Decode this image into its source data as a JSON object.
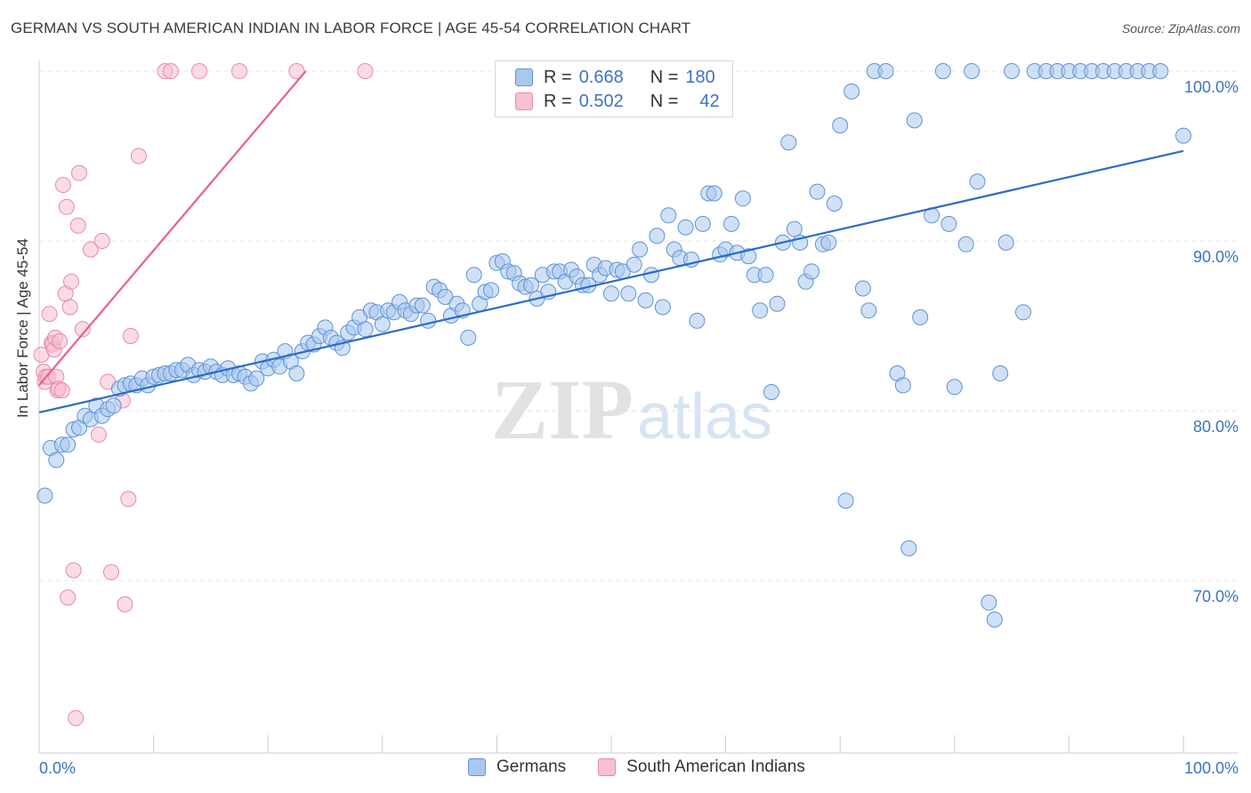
{
  "title": "GERMAN VS SOUTH AMERICAN INDIAN IN LABOR FORCE | AGE 45-54 CORRELATION CHART",
  "source": "Source: ZipAtlas.com",
  "watermark": {
    "zip": "ZIP",
    "atlas": "atlas"
  },
  "legend": {
    "r_label": "R =",
    "n_label": "N =",
    "series": [
      {
        "r": "0.668",
        "n": "180",
        "fill": "#aac8ee",
        "stroke": "#5e92d8"
      },
      {
        "r": "0.502",
        "n": "42",
        "fill": "#f8c0d2",
        "stroke": "#e58aa8"
      }
    ]
  },
  "colors": {
    "blue_line": "#2b6cc8",
    "pink_line": "#e8608d",
    "tick_label": "#3a74c4",
    "grid": "#e6e6e6"
  },
  "chart_data": {
    "type": "scatter",
    "title": "GERMAN VS SOUTH AMERICAN INDIAN IN LABOR FORCE | AGE 45-54 CORRELATION CHART",
    "xlabel": "",
    "ylabel": "In Labor Force | Age 45-54",
    "xlim": [
      0,
      100
    ],
    "ylim": [
      60,
      101
    ],
    "x_tick_labels": [
      "0.0%",
      "100.0%"
    ],
    "y_ticks": [
      70,
      80,
      90,
      100
    ],
    "y_tick_labels": [
      "70.0%",
      "80.0%",
      "90.0%",
      "100.0%"
    ],
    "grid": true,
    "legend_placement": "bottom",
    "series": [
      {
        "name": "Germans",
        "color": "#aac8ee",
        "trend": {
          "x": [
            0,
            100
          ],
          "y": [
            79.9,
            95.3
          ]
        },
        "points": [
          [
            0.5,
            75
          ],
          [
            1,
            77.8
          ],
          [
            1.5,
            77.1
          ],
          [
            2,
            78
          ],
          [
            2.5,
            78
          ],
          [
            3,
            78.9
          ],
          [
            3.5,
            79
          ],
          [
            4,
            79.7
          ],
          [
            4.5,
            79.5
          ],
          [
            5,
            80.3
          ],
          [
            5.5,
            79.7
          ],
          [
            6,
            80.1
          ],
          [
            6.5,
            80.3
          ],
          [
            7,
            81.3
          ],
          [
            7.5,
            81.5
          ],
          [
            8,
            81.6
          ],
          [
            8.5,
            81.5
          ],
          [
            9,
            81.9
          ],
          [
            9.5,
            81.5
          ],
          [
            10,
            82
          ],
          [
            10.5,
            82.1
          ],
          [
            11,
            82.2
          ],
          [
            11.5,
            82.2
          ],
          [
            12,
            82.4
          ],
          [
            12.5,
            82.4
          ],
          [
            13,
            82.7
          ],
          [
            13.5,
            82.1
          ],
          [
            14,
            82.4
          ],
          [
            14.5,
            82.3
          ],
          [
            15,
            82.6
          ],
          [
            15.5,
            82.3
          ],
          [
            16,
            82.1
          ],
          [
            16.5,
            82.5
          ],
          [
            17,
            82.1
          ],
          [
            17.5,
            82.2
          ],
          [
            18,
            82
          ],
          [
            18.5,
            81.6
          ],
          [
            19,
            81.9
          ],
          [
            19.5,
            82.9
          ],
          [
            20,
            82.5
          ],
          [
            20.5,
            83
          ],
          [
            21,
            82.6
          ],
          [
            21.5,
            83.5
          ],
          [
            22,
            82.9
          ],
          [
            22.5,
            82.2
          ],
          [
            23,
            83.5
          ],
          [
            23.5,
            84
          ],
          [
            24,
            83.9
          ],
          [
            24.5,
            84.4
          ],
          [
            25,
            84.9
          ],
          [
            25.5,
            84.3
          ],
          [
            26,
            84
          ],
          [
            26.5,
            83.7
          ],
          [
            27,
            84.6
          ],
          [
            27.5,
            84.9
          ],
          [
            28,
            85.5
          ],
          [
            28.5,
            84.8
          ],
          [
            29,
            85.9
          ],
          [
            29.5,
            85.8
          ],
          [
            30,
            85.1
          ],
          [
            30.5,
            85.9
          ],
          [
            31,
            85.8
          ],
          [
            31.5,
            86.4
          ],
          [
            32,
            85.9
          ],
          [
            32.5,
            85.7
          ],
          [
            33,
            86.2
          ],
          [
            33.5,
            86.2
          ],
          [
            34,
            85.3
          ],
          [
            34.5,
            87.3
          ],
          [
            35,
            87.1
          ],
          [
            35.5,
            86.7
          ],
          [
            36,
            85.6
          ],
          [
            36.5,
            86.3
          ],
          [
            37,
            85.9
          ],
          [
            37.5,
            84.3
          ],
          [
            38,
            88
          ],
          [
            38.5,
            86.3
          ],
          [
            39,
            87
          ],
          [
            39.5,
            87.1
          ],
          [
            40,
            88.7
          ],
          [
            40.5,
            88.8
          ],
          [
            41,
            88.2
          ],
          [
            41.5,
            88.1
          ],
          [
            42,
            87.5
          ],
          [
            42.5,
            87.3
          ],
          [
            43,
            87.4
          ],
          [
            43.5,
            86.6
          ],
          [
            44,
            88
          ],
          [
            44.5,
            87
          ],
          [
            45,
            88.2
          ],
          [
            45.5,
            88.2
          ],
          [
            46,
            87.6
          ],
          [
            46.5,
            88.3
          ],
          [
            47,
            87.9
          ],
          [
            47.5,
            87.4
          ],
          [
            48,
            87.4
          ],
          [
            48.5,
            88.6
          ],
          [
            49,
            88
          ],
          [
            49.5,
            88.4
          ],
          [
            50,
            86.9
          ],
          [
            50.5,
            88.3
          ],
          [
            51,
            88.2
          ],
          [
            51.5,
            86.9
          ],
          [
            52,
            88.6
          ],
          [
            52.5,
            89.5
          ],
          [
            53,
            86.5
          ],
          [
            53.5,
            88
          ],
          [
            54,
            90.3
          ],
          [
            54.5,
            86.1
          ],
          [
            55,
            91.5
          ],
          [
            55.5,
            89.5
          ],
          [
            56,
            89
          ],
          [
            56.5,
            90.8
          ],
          [
            57,
            88.9
          ],
          [
            57.5,
            85.3
          ],
          [
            58,
            91
          ],
          [
            58.5,
            92.8
          ],
          [
            59,
            92.8
          ],
          [
            59.5,
            89.2
          ],
          [
            60,
            89.5
          ],
          [
            60.5,
            91
          ],
          [
            61,
            89.3
          ],
          [
            61.5,
            92.5
          ],
          [
            62,
            89.1
          ],
          [
            62.5,
            88
          ],
          [
            63,
            85.9
          ],
          [
            63.5,
            88
          ],
          [
            64,
            81.1
          ],
          [
            64.5,
            86.3
          ],
          [
            65,
            89.9
          ],
          [
            65.5,
            95.8
          ],
          [
            66,
            90.7
          ],
          [
            66.5,
            89.9
          ],
          [
            67,
            87.6
          ],
          [
            67.5,
            88.2
          ],
          [
            68,
            92.9
          ],
          [
            68.5,
            89.8
          ],
          [
            69,
            89.9
          ],
          [
            69.5,
            92.2
          ],
          [
            70,
            96.8
          ],
          [
            70.5,
            74.7
          ],
          [
            71,
            98.8
          ],
          [
            72,
            87.2
          ],
          [
            72.5,
            85.9
          ],
          [
            73,
            100
          ],
          [
            74,
            100
          ],
          [
            75,
            82.2
          ],
          [
            75.5,
            81.5
          ],
          [
            76,
            71.9
          ],
          [
            76.5,
            97.1
          ],
          [
            77,
            85.5
          ],
          [
            78,
            91.5
          ],
          [
            79,
            100
          ],
          [
            79.5,
            91
          ],
          [
            80,
            81.4
          ],
          [
            81,
            89.8
          ],
          [
            81.5,
            100
          ],
          [
            82,
            93.5
          ],
          [
            83,
            68.7
          ],
          [
            83.5,
            67.7
          ],
          [
            84,
            82.2
          ],
          [
            84.5,
            89.9
          ],
          [
            85,
            100
          ],
          [
            86,
            85.8
          ],
          [
            87,
            100
          ],
          [
            88,
            100
          ],
          [
            89,
            100
          ],
          [
            90,
            100
          ],
          [
            91,
            100
          ],
          [
            92,
            100
          ],
          [
            93,
            100
          ],
          [
            94,
            100
          ],
          [
            95,
            100
          ],
          [
            96,
            100
          ],
          [
            97,
            100
          ],
          [
            98,
            100
          ],
          [
            100,
            96.2
          ]
        ]
      },
      {
        "name": "South American Indians",
        "color": "#f8c0d2",
        "trend": {
          "x": [
            0,
            23.3
          ],
          "y": [
            81.5,
            100
          ]
        },
        "points": [
          [
            0.2,
            83.3
          ],
          [
            0.4,
            82.3
          ],
          [
            0.5,
            81.7
          ],
          [
            0.6,
            82
          ],
          [
            0.8,
            82
          ],
          [
            0.9,
            85.7
          ],
          [
            1.1,
            84
          ],
          [
            1.2,
            83.9
          ],
          [
            1.3,
            83.6
          ],
          [
            1.4,
            84.3
          ],
          [
            1.5,
            82
          ],
          [
            1.6,
            81.2
          ],
          [
            1.7,
            81.3
          ],
          [
            1.8,
            84.1
          ],
          [
            2.0,
            81.2
          ],
          [
            2.1,
            93.3
          ],
          [
            2.3,
            86.9
          ],
          [
            2.4,
            92
          ],
          [
            2.5,
            69
          ],
          [
            2.7,
            86.1
          ],
          [
            2.8,
            87.6
          ],
          [
            3.0,
            70.6
          ],
          [
            3.2,
            61.9
          ],
          [
            3.4,
            90.9
          ],
          [
            3.5,
            94
          ],
          [
            3.8,
            84.8
          ],
          [
            4.5,
            89.5
          ],
          [
            5.2,
            78.6
          ],
          [
            5.5,
            90
          ],
          [
            6,
            81.7
          ],
          [
            6.3,
            70.5
          ],
          [
            7.3,
            80.6
          ],
          [
            7.5,
            68.6
          ],
          [
            7.8,
            74.8
          ],
          [
            8,
            84.4
          ],
          [
            8.7,
            95
          ],
          [
            11,
            100
          ],
          [
            11.5,
            100
          ],
          [
            14,
            100
          ],
          [
            17.5,
            100
          ],
          [
            22.5,
            100
          ],
          [
            28.5,
            100
          ]
        ]
      }
    ]
  }
}
